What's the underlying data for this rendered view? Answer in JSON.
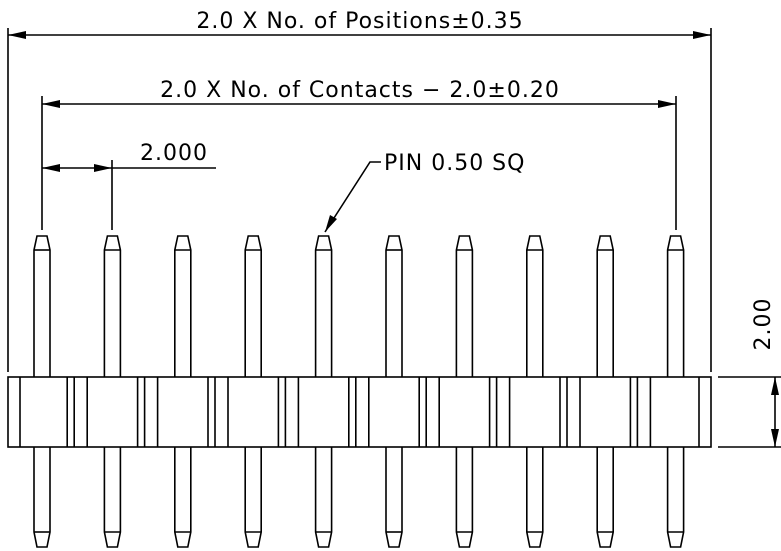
{
  "dimensions": {
    "overall": "2.0 X No. of Positions±0.35",
    "contacts": "2.0 X No. of Contacts − 2.0±0.20",
    "pitch": "2.000",
    "pin": "PIN 0.50 SQ",
    "height": "2.00"
  }
}
